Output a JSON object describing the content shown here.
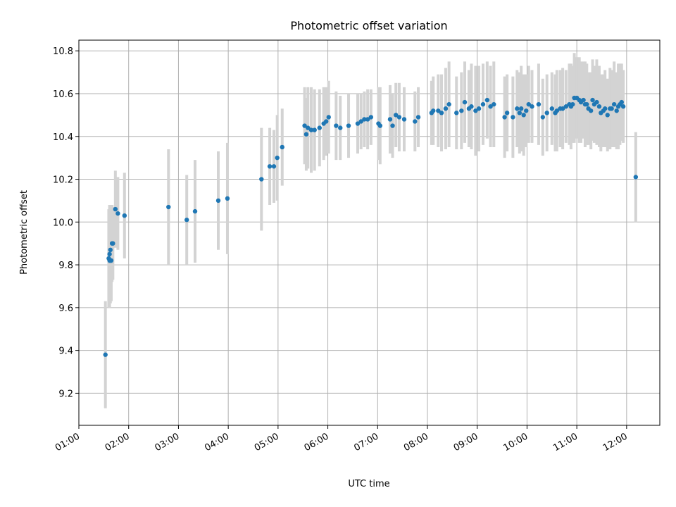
{
  "chart_data": {
    "type": "scatter",
    "title": "Photometric offset variation",
    "xlabel": "UTC time",
    "ylabel": "Photometric offset",
    "xlim": [
      "01:00",
      "12:40"
    ],
    "ylim": [
      9.05,
      10.85
    ],
    "x_ticks": [
      "01:00",
      "02:00",
      "03:00",
      "04:00",
      "05:00",
      "06:00",
      "07:00",
      "08:00",
      "09:00",
      "10:00",
      "11:00",
      "12:00"
    ],
    "y_ticks": [
      9.2,
      9.4,
      9.6,
      9.8,
      10.0,
      10.2,
      10.4,
      10.6,
      10.8
    ],
    "grid": true,
    "colors": {
      "marker": "#1f77b4",
      "errorbar": "#d3d3d3"
    },
    "series": [
      {
        "x": [
          "01:32",
          "01:36",
          "01:37",
          "01:37",
          "01:38",
          "01:38",
          "01:39",
          "01:40",
          "01:41",
          "01:44",
          "01:47",
          "01:55",
          "02:48",
          "03:10",
          "03:20",
          "03:48",
          "03:59",
          "04:40",
          "04:50",
          "04:55",
          "04:59",
          "05:05",
          "05:32",
          "05:34",
          "05:36",
          "05:40",
          "05:44",
          "05:50",
          "05:55",
          "05:58",
          "06:01",
          "06:10",
          "06:15",
          "06:25",
          "06:36",
          "06:40",
          "06:44",
          "06:48",
          "06:52",
          "07:01",
          "07:03",
          "07:15",
          "07:18",
          "07:22",
          "07:26",
          "07:32",
          "07:45",
          "07:49",
          "08:05",
          "08:07",
          "08:13",
          "08:17",
          "08:22",
          "08:26",
          "08:35",
          "08:41",
          "08:45",
          "08:50",
          "08:53",
          "08:58",
          "09:02",
          "09:07",
          "09:12",
          "09:16",
          "09:20",
          "09:33",
          "09:36",
          "09:43",
          "09:48",
          "09:51",
          "09:53",
          "09:56",
          "09:59",
          "10:02",
          "10:06",
          "10:14",
          "10:19",
          "10:24",
          "10:30",
          "10:34",
          "10:36",
          "10:40",
          "10:43",
          "10:47",
          "10:51",
          "10:53",
          "10:55",
          "10:57",
          "11:00",
          "11:03",
          "11:05",
          "11:08",
          "11:10",
          "11:12",
          "11:14",
          "11:17",
          "11:19",
          "11:21",
          "11:24",
          "11:27",
          "11:29",
          "11:32",
          "11:34",
          "11:37",
          "11:40",
          "11:42",
          "11:45",
          "11:48",
          "11:50",
          "11:52",
          "11:54",
          "11:56",
          "12:11"
        ],
        "y": [
          9.38,
          9.83,
          9.85,
          9.82,
          9.87,
          9.82,
          9.82,
          9.9,
          9.9,
          10.06,
          10.04,
          10.03,
          10.07,
          10.01,
          10.05,
          10.1,
          10.11,
          10.2,
          10.26,
          10.26,
          10.3,
          10.35,
          10.45,
          10.41,
          10.44,
          10.43,
          10.43,
          10.44,
          10.46,
          10.47,
          10.49,
          10.45,
          10.44,
          10.45,
          10.46,
          10.47,
          10.48,
          10.48,
          10.49,
          10.46,
          10.45,
          10.48,
          10.45,
          10.5,
          10.49,
          10.48,
          10.47,
          10.49,
          10.51,
          10.52,
          10.52,
          10.51,
          10.53,
          10.55,
          10.51,
          10.52,
          10.56,
          10.53,
          10.54,
          10.52,
          10.53,
          10.55,
          10.57,
          10.54,
          10.55,
          10.49,
          10.51,
          10.49,
          10.53,
          10.51,
          10.53,
          10.5,
          10.52,
          10.55,
          10.54,
          10.55,
          10.49,
          10.51,
          10.53,
          10.51,
          10.52,
          10.53,
          10.53,
          10.54,
          10.55,
          10.54,
          10.55,
          10.58,
          10.58,
          10.57,
          10.56,
          10.57,
          10.55,
          10.55,
          10.53,
          10.52,
          10.57,
          10.55,
          10.56,
          10.54,
          10.51,
          10.52,
          10.53,
          10.5,
          10.53,
          10.53,
          10.55,
          10.52,
          10.54,
          10.55,
          10.56,
          10.54,
          10.21
        ],
        "yerr": [
          0.25,
          0.23,
          0.23,
          0.22,
          0.21,
          0.2,
          0.19,
          0.18,
          0.17,
          0.18,
          0.17,
          0.2,
          0.27,
          0.21,
          0.24,
          0.23,
          0.26,
          0.24,
          0.18,
          0.17,
          0.2,
          0.18,
          0.18,
          0.17,
          0.19,
          0.2,
          0.19,
          0.18,
          0.17,
          0.16,
          0.17,
          0.16,
          0.15,
          0.15,
          0.14,
          0.13,
          0.13,
          0.14,
          0.13,
          0.17,
          0.18,
          0.16,
          0.15,
          0.15,
          0.16,
          0.15,
          0.14,
          0.14,
          0.15,
          0.16,
          0.17,
          0.18,
          0.19,
          0.2,
          0.17,
          0.18,
          0.19,
          0.18,
          0.2,
          0.21,
          0.2,
          0.19,
          0.18,
          0.19,
          0.2,
          0.19,
          0.18,
          0.19,
          0.18,
          0.19,
          0.2,
          0.19,
          0.17,
          0.18,
          0.17,
          0.19,
          0.18,
          0.18,
          0.17,
          0.18,
          0.19,
          0.18,
          0.19,
          0.17,
          0.19,
          0.2,
          0.18,
          0.21,
          0.19,
          0.2,
          0.19,
          0.18,
          0.2,
          0.19,
          0.17,
          0.18,
          0.19,
          0.18,
          0.2,
          0.19,
          0.18,
          0.17,
          0.18,
          0.17,
          0.19,
          0.18,
          0.2,
          0.18,
          0.2,
          0.19,
          0.18,
          0.17,
          0.21
        ]
      }
    ]
  }
}
